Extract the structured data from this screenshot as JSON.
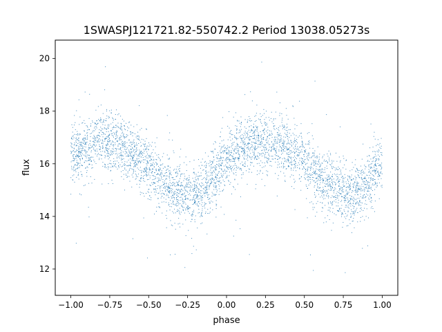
{
  "chart_data": {
    "type": "scatter",
    "title": "1SWASPJ121721.82-550742.2 Period 13038.05273s",
    "xlabel": "phase",
    "ylabel": "flux",
    "xlim": [
      -1.1,
      1.1
    ],
    "ylim": [
      11.0,
      20.7
    ],
    "xticks": [
      {
        "value": -1.0,
        "label": "−1.00"
      },
      {
        "value": -0.75,
        "label": "−0.75"
      },
      {
        "value": -0.5,
        "label": "−0.50"
      },
      {
        "value": -0.25,
        "label": "−0.25"
      },
      {
        "value": 0.0,
        "label": "0.00"
      },
      {
        "value": 0.25,
        "label": "0.25"
      },
      {
        "value": 0.5,
        "label": "0.50"
      },
      {
        "value": 0.75,
        "label": "0.75"
      },
      {
        "value": 1.0,
        "label": "1.00"
      }
    ],
    "yticks": [
      {
        "value": 12,
        "label": "12"
      },
      {
        "value": 14,
        "label": "14"
      },
      {
        "value": 16,
        "label": "16"
      },
      {
        "value": 18,
        "label": "18"
      },
      {
        "value": 20,
        "label": "20"
      }
    ],
    "grid": false,
    "marker_color": "#1f77b4",
    "series": [
      {
        "values_description_phase_flux": [
          [
            -1.0,
            16.3
          ],
          [
            -0.95,
            16.5
          ],
          [
            -0.9,
            16.6
          ],
          [
            -0.85,
            16.8
          ],
          [
            -0.8,
            16.9
          ],
          [
            -0.75,
            16.9
          ],
          [
            -0.7,
            16.8
          ],
          [
            -0.65,
            16.6
          ],
          [
            -0.6,
            16.4
          ],
          [
            -0.55,
            16.1
          ],
          [
            -0.5,
            15.8
          ],
          [
            -0.45,
            15.5
          ],
          [
            -0.4,
            15.3
          ],
          [
            -0.35,
            15.1
          ],
          [
            -0.3,
            14.9
          ],
          [
            -0.25,
            14.8
          ],
          [
            -0.2,
            14.8
          ],
          [
            -0.15,
            15.0
          ],
          [
            -0.1,
            15.4
          ],
          [
            -0.05,
            15.8
          ],
          [
            0.0,
            16.1
          ],
          [
            0.05,
            16.3
          ],
          [
            0.1,
            16.5
          ],
          [
            0.15,
            16.7
          ],
          [
            0.2,
            16.8
          ],
          [
            0.25,
            16.9
          ],
          [
            0.3,
            16.8
          ],
          [
            0.35,
            16.7
          ],
          [
            0.4,
            16.5
          ],
          [
            0.45,
            16.3
          ],
          [
            0.5,
            16.0
          ],
          [
            0.55,
            15.7
          ],
          [
            0.6,
            15.4
          ],
          [
            0.65,
            15.2
          ],
          [
            0.7,
            15.0
          ],
          [
            0.75,
            14.8
          ],
          [
            0.8,
            14.8
          ],
          [
            0.85,
            15.0
          ],
          [
            0.9,
            15.3
          ],
          [
            0.95,
            15.7
          ],
          [
            1.0,
            16.1
          ]
        ]
      }
    ]
  }
}
